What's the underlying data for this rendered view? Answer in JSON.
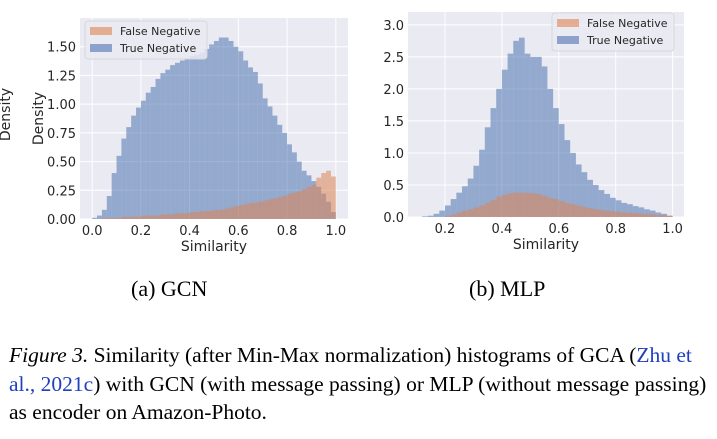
{
  "colors": {
    "true_negative": "#4c72b0",
    "false_negative": "#dd8452",
    "plot_background": "#eaeaf2",
    "citation_link": "#1f3fbf"
  },
  "chart_data": [
    {
      "type": "bar",
      "subcaption": "(a) GCN",
      "xlabel": "Similarity",
      "ylabel": "Density",
      "xlim": [
        -0.05,
        1.05
      ],
      "ylim": [
        0,
        1.75
      ],
      "xticks": [
        "0.0",
        "0.2",
        "0.4",
        "0.6",
        "0.8",
        "1.0"
      ],
      "yticks": [
        "0.00",
        "0.25",
        "0.50",
        "0.75",
        "1.00",
        "1.25",
        "1.50"
      ],
      "grid": true,
      "legend_placement": "top-left",
      "bin_width": 0.02,
      "bin_start": 0.0,
      "series": [
        {
          "name": "False Negative",
          "values": [
            0,
            0,
            0.01,
            0.01,
            0.01,
            0.01,
            0.02,
            0.02,
            0.02,
            0.02,
            0.03,
            0.03,
            0.03,
            0.03,
            0.04,
            0.04,
            0.04,
            0.05,
            0.05,
            0.05,
            0.06,
            0.06,
            0.07,
            0.07,
            0.07,
            0.08,
            0.08,
            0.09,
            0.1,
            0.11,
            0.12,
            0.13,
            0.14,
            0.14,
            0.15,
            0.16,
            0.17,
            0.18,
            0.19,
            0.2,
            0.22,
            0.23,
            0.24,
            0.26,
            0.28,
            0.3,
            0.36,
            0.4,
            0.42,
            0.37
          ]
        },
        {
          "name": "True Negative",
          "values": [
            0.01,
            0.03,
            0.08,
            0.2,
            0.4,
            0.55,
            0.7,
            0.8,
            0.9,
            0.97,
            1.03,
            1.1,
            1.15,
            1.22,
            1.27,
            1.3,
            1.34,
            1.36,
            1.38,
            1.4,
            1.42,
            1.43,
            1.45,
            1.48,
            1.52,
            1.55,
            1.58,
            1.58,
            1.55,
            1.5,
            1.46,
            1.38,
            1.32,
            1.28,
            1.18,
            1.05,
            0.98,
            0.9,
            0.82,
            0.75,
            0.65,
            0.58,
            0.5,
            0.42,
            0.38,
            0.33,
            0.28,
            0.22,
            0.15,
            0.06
          ]
        }
      ]
    },
    {
      "type": "bar",
      "subcaption": "(b) MLP",
      "xlabel": "Similarity",
      "ylabel": "Density",
      "xlim": [
        0.07,
        1.04
      ],
      "ylim": [
        0,
        3.2
      ],
      "xticks": [
        "0.2",
        "0.4",
        "0.6",
        "0.8",
        "1.0"
      ],
      "yticks": [
        "0.0",
        "0.5",
        "1.0",
        "1.5",
        "2.0",
        "2.5",
        "3.0"
      ],
      "grid": true,
      "legend_placement": "top-right",
      "bin_width": 0.02,
      "bin_start": 0.0,
      "series": [
        {
          "name": "False Negative",
          "values": [
            0,
            0,
            0,
            0,
            0,
            0,
            0,
            0,
            0,
            0,
            0.02,
            0.04,
            0.07,
            0.1,
            0.12,
            0.15,
            0.18,
            0.22,
            0.27,
            0.32,
            0.35,
            0.37,
            0.38,
            0.38,
            0.38,
            0.37,
            0.36,
            0.33,
            0.3,
            0.28,
            0.25,
            0.22,
            0.2,
            0.18,
            0.16,
            0.14,
            0.12,
            0.11,
            0.1,
            0.09,
            0.08,
            0.07,
            0.07,
            0.06,
            0.05,
            0.05,
            0.04,
            0.03,
            0.03,
            0.02
          ]
        },
        {
          "name": "True Negative",
          "values": [
            0,
            0,
            0,
            0,
            0,
            0,
            0.01,
            0.02,
            0.05,
            0.1,
            0.18,
            0.28,
            0.38,
            0.48,
            0.6,
            0.8,
            1.05,
            1.4,
            1.7,
            2.0,
            2.3,
            2.55,
            2.75,
            2.8,
            2.55,
            2.5,
            2.5,
            2.35,
            2.0,
            1.7,
            1.45,
            1.2,
            1.0,
            0.82,
            0.7,
            0.58,
            0.5,
            0.42,
            0.36,
            0.3,
            0.26,
            0.22,
            0.2,
            0.17,
            0.15,
            0.12,
            0.1,
            0.07,
            0.05,
            0.02
          ]
        }
      ]
    }
  ],
  "caption": {
    "label": "Figure 3.",
    "text_before": " Similarity (after Min-Max normalization) histograms of GCA (",
    "citation": "Zhu et al., 2021c",
    "text_after": ") with GCN (with message passing) or MLP (without message passing) as encoder on Amazon-Photo."
  }
}
